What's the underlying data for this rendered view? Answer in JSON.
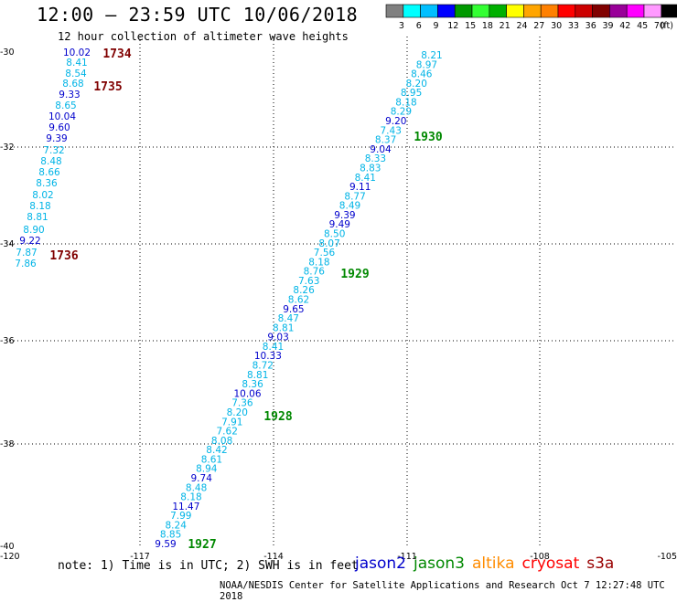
{
  "header": {
    "title": "12:00 – 23:59 UTC 10/06/2018",
    "subtitle": "12 hour collection of altimeter wave heights"
  },
  "colorbar": {
    "colors": [
      "#808080",
      "#00ffff",
      "#00bfff",
      "#0000ff",
      "#009900",
      "#33ff33",
      "#00b000",
      "#ffff00",
      "#ffa500",
      "#ff8000",
      "#ff0000",
      "#cc0000",
      "#800000",
      "#990099",
      "#ff00ff",
      "#ff99ff",
      "#000000"
    ],
    "labels": [
      "3",
      "6",
      "9",
      "12",
      "15",
      "18",
      "21",
      "24",
      "27",
      "30",
      "33",
      "36",
      "39",
      "42",
      "45",
      "70",
      "(ft)"
    ]
  },
  "axes": {
    "lon_labels": [
      "-120",
      "-117",
      "-114",
      "-111",
      "-108",
      "-105"
    ],
    "lat_labels": [
      "-30",
      "-32",
      "-34",
      "-36",
      "-38",
      "-40"
    ]
  },
  "tracks": [
    {
      "satellite": "cryosat",
      "values": [
        "10.02",
        "8.41",
        "8.54",
        "8.68",
        "9.33",
        "8.65",
        "10.04",
        "9.60",
        "9.39",
        "7.32",
        "8.48",
        "8.66",
        "8.36",
        "8.02",
        "8.18",
        "8.81",
        "8.90",
        "9.22",
        "7.87",
        "7.86"
      ],
      "time_labels": [
        "1734",
        "1735",
        "1736"
      ]
    },
    {
      "satellite": "jason3",
      "values": [
        "8.21",
        "8.97",
        "8.46",
        "8.20",
        "8.95",
        "8.18",
        "8.29",
        "9.20",
        "7.43",
        "8.37",
        "9.04",
        "8.33",
        "8.83",
        "8.41",
        "9.11",
        "8.77",
        "8.49",
        "9.39",
        "9.49",
        "8.50",
        "8.07",
        "7.56",
        "8.18",
        "8.76",
        "7.63",
        "8.26",
        "8.62",
        "9.65",
        "8.47",
        "8.81",
        "9.03",
        "8.41",
        "10.33",
        "8.72",
        "8.81",
        "8.36",
        "10.06",
        "7.36",
        "8.20",
        "7.91",
        "7.62",
        "8.08",
        "8.42",
        "8.61",
        "8.94",
        "9.74",
        "8.48",
        "8.18",
        "11.47",
        "7.99",
        "8.24",
        "8.85",
        "9.59"
      ],
      "time_labels": [
        "1930",
        "1929",
        "1928",
        "1927"
      ]
    }
  ],
  "note": "note:  1) Time is in UTC; 2) SWH is in feet",
  "legend": [
    {
      "name": "jason2",
      "color": "#0000cc"
    },
    {
      "name": "jason3",
      "color": "#008800"
    },
    {
      "name": "altika",
      "color": "#ff8c00"
    },
    {
      "name": "cryosat",
      "color": "#ff0000"
    },
    {
      "name": "s3a",
      "color": "#990000"
    }
  ],
  "credit": "NOAA/NESDIS Center for Satellite Applications and Research    Oct  7 12:27:48 UTC 2018"
}
